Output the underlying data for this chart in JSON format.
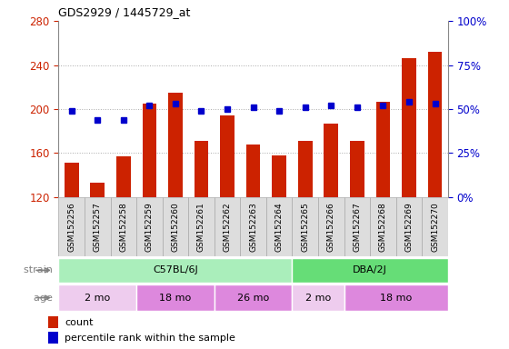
{
  "title": "GDS2929 / 1445729_at",
  "samples": [
    "GSM152256",
    "GSM152257",
    "GSM152258",
    "GSM152259",
    "GSM152260",
    "GSM152261",
    "GSM152262",
    "GSM152263",
    "GSM152264",
    "GSM152265",
    "GSM152266",
    "GSM152267",
    "GSM152268",
    "GSM152269",
    "GSM152270"
  ],
  "counts": [
    151,
    133,
    157,
    205,
    215,
    171,
    194,
    168,
    158,
    171,
    187,
    171,
    207,
    246,
    252
  ],
  "percentile_ranks": [
    49,
    44,
    44,
    52,
    53,
    49,
    50,
    51,
    49,
    51,
    52,
    51,
    52,
    54,
    53
  ],
  "ylim_left": [
    120,
    280
  ],
  "ylim_right": [
    0,
    100
  ],
  "yticks_left": [
    120,
    160,
    200,
    240,
    280
  ],
  "yticks_right": [
    0,
    25,
    50,
    75,
    100
  ],
  "bar_color": "#cc2200",
  "dot_color": "#0000cc",
  "grid_color": "#aaaaaa",
  "strain_groups": [
    {
      "label": "C57BL/6J",
      "start": 0,
      "end": 8,
      "color": "#aaeebb"
    },
    {
      "label": "DBA/2J",
      "start": 9,
      "end": 14,
      "color": "#66dd77"
    }
  ],
  "age_groups": [
    {
      "label": "2 mo",
      "start": 0,
      "end": 2,
      "color": "#eeccee"
    },
    {
      "label": "18 mo",
      "start": 3,
      "end": 5,
      "color": "#dd88dd"
    },
    {
      "label": "26 mo",
      "start": 6,
      "end": 8,
      "color": "#dd88dd"
    },
    {
      "label": "2 mo",
      "start": 9,
      "end": 10,
      "color": "#eeccee"
    },
    {
      "label": "18 mo",
      "start": 11,
      "end": 14,
      "color": "#dd88dd"
    }
  ],
  "strain_label": "strain",
  "age_label": "age",
  "legend_count": "count",
  "legend_percentile": "percentile rank within the sample",
  "bar_color_left": "#cc2200",
  "tick_label_color_left": "#cc2200",
  "tick_label_color_right": "#0000cc",
  "xtick_bg": "#dddddd",
  "xtick_border": "#aaaaaa"
}
